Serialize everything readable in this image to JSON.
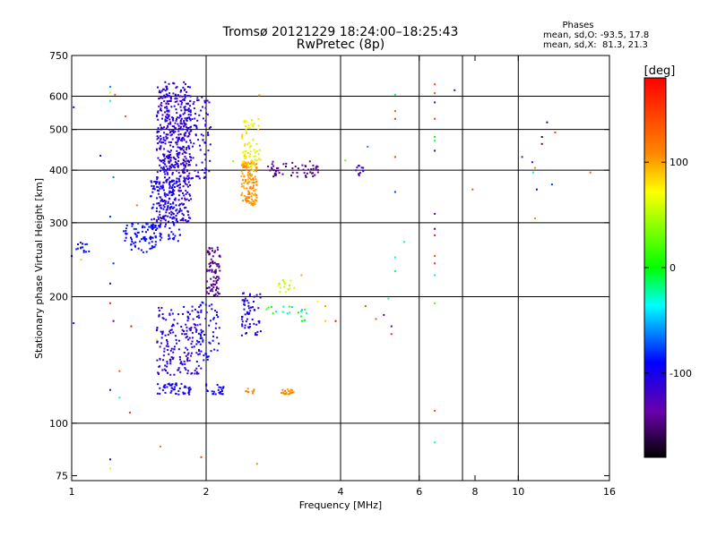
{
  "header": {
    "title_line1": "Tromsø 20121229 18:24:00–18:25:43",
    "title_line2": "RwPretec (8p)",
    "stats_title": "Phases",
    "stats_line1": "mean, sd,O: -93.5, 17.8",
    "stats_line2": "mean, sd,X:  81.3, 21.3"
  },
  "chart_data": {
    "type": "scatter",
    "xlabel": "Frequency [MHz]",
    "ylabel": "Stationary phase Virtual Height [km]",
    "x_scale": "log",
    "y_scale": "log",
    "xlim": [
      1,
      16
    ],
    "ylim": [
      73,
      750
    ],
    "x_ticks": [
      1,
      2,
      4,
      6,
      8,
      10,
      16
    ],
    "y_ticks": [
      75,
      100,
      200,
      300,
      400,
      500,
      600,
      750
    ],
    "x_grid": [
      2,
      4,
      6,
      7.5,
      10
    ],
    "y_grid": [
      100,
      200,
      300,
      400,
      500,
      600
    ],
    "colorbar": {
      "label": "[deg]",
      "range": [
        -180,
        180
      ],
      "ticks": [
        100,
        0,
        -100
      ]
    },
    "clusters": [
      {
        "x": [
          1.55,
          1.85
        ],
        "y": [
          300,
          650
        ],
        "phase": [
          -125,
          -95
        ],
        "n": 520
      },
      {
        "x": [
          1.6,
          2.05
        ],
        "y": [
          380,
          600
        ],
        "phase": [
          -120,
          -100
        ],
        "n": 160
      },
      {
        "x": [
          1.5,
          1.75
        ],
        "y": [
          270,
          380
        ],
        "phase": [
          -105,
          -85
        ],
        "n": 120
      },
      {
        "x": [
          1.3,
          1.55
        ],
        "y": [
          255,
          300
        ],
        "phase": [
          -100,
          -80
        ],
        "n": 80
      },
      {
        "x": [
          1.02,
          1.1
        ],
        "y": [
          255,
          270
        ],
        "phase": [
          -95,
          -80
        ],
        "n": 14
      },
      {
        "x": [
          2.4,
          2.6
        ],
        "y": [
          330,
          420
        ],
        "phase": [
          95,
          115
        ],
        "n": 130
      },
      {
        "x": [
          2.4,
          2.65
        ],
        "y": [
          400,
          530
        ],
        "phase": [
          50,
          90
        ],
        "n": 70
      },
      {
        "x": [
          2.75,
          3.6
        ],
        "y": [
          385,
          420
        ],
        "phase": [
          -160,
          -130
        ],
        "n": 55
      },
      {
        "x": [
          4.3,
          4.5
        ],
        "y": [
          385,
          410
        ],
        "phase": [
          -130,
          -110
        ],
        "n": 12
      },
      {
        "x": [
          2.0,
          2.15
        ],
        "y": [
          200,
          262
        ],
        "phase": [
          -160,
          -130
        ],
        "n": 85
      },
      {
        "x": [
          1.55,
          1.95
        ],
        "y": [
          130,
          190
        ],
        "phase": [
          -120,
          -95
        ],
        "n": 180
      },
      {
        "x": [
          1.9,
          2.15
        ],
        "y": [
          140,
          195
        ],
        "phase": [
          -110,
          -80
        ],
        "n": 60
      },
      {
        "x": [
          1.55,
          1.85
        ],
        "y": [
          117,
          125
        ],
        "phase": [
          -110,
          -90
        ],
        "n": 50
      },
      {
        "x": [
          2.0,
          2.2
        ],
        "y": [
          117,
          124
        ],
        "phase": [
          -105,
          -85
        ],
        "n": 22
      },
      {
        "x": [
          2.4,
          2.65
        ],
        "y": [
          160,
          205
        ],
        "phase": [
          -115,
          -95
        ],
        "n": 60
      },
      {
        "x": [
          2.7,
          3.4
        ],
        "y": [
          175,
          190
        ],
        "phase": [
          -50,
          20
        ],
        "n": 20
      },
      {
        "x": [
          2.95,
          3.15
        ],
        "y": [
          117,
          121
        ],
        "phase": [
          95,
          115
        ],
        "n": 22
      },
      {
        "x": [
          2.45,
          2.6
        ],
        "y": [
          117,
          121
        ],
        "phase": [
          100,
          120
        ],
        "n": 8
      },
      {
        "x": [
          2.9,
          3.1
        ],
        "y": [
          205,
          220
        ],
        "phase": [
          40,
          70
        ],
        "n": 15
      }
    ],
    "points": [
      [
        1.01,
        565,
        -90
      ],
      [
        1.22,
        632,
        -60
      ],
      [
        1.22,
        612,
        60
      ],
      [
        1.25,
        605,
        130
      ],
      [
        1.22,
        585,
        -30
      ],
      [
        1.32,
        537,
        140
      ],
      [
        1.16,
        433,
        -110
      ],
      [
        1.24,
        385,
        -60
      ],
      [
        1.4,
        330,
        120
      ],
      [
        1.22,
        310,
        -80
      ],
      [
        1.0,
        250,
        -110
      ],
      [
        1.05,
        245,
        90
      ],
      [
        1.24,
        240,
        -80
      ],
      [
        1.22,
        215,
        -150
      ],
      [
        1.22,
        193,
        160
      ],
      [
        1.01,
        173,
        -100
      ],
      [
        1.24,
        175,
        -130
      ],
      [
        1.55,
        158,
        80
      ],
      [
        1.36,
        170,
        170
      ],
      [
        1.28,
        133,
        130
      ],
      [
        1.22,
        120,
        -120
      ],
      [
        1.35,
        106,
        150
      ],
      [
        1.28,
        115,
        -20
      ],
      [
        1.58,
        88,
        120
      ],
      [
        1.22,
        82,
        -150
      ],
      [
        1.22,
        78,
        60
      ],
      [
        1.95,
        83,
        150
      ],
      [
        2.6,
        80,
        110
      ],
      [
        2.63,
        603,
        110
      ],
      [
        2.3,
        420,
        40
      ],
      [
        3.27,
        225,
        100
      ],
      [
        3.15,
        210,
        60
      ],
      [
        3.55,
        195,
        70
      ],
      [
        3.7,
        175,
        90
      ],
      [
        3.7,
        190,
        100
      ],
      [
        3.9,
        175,
        180
      ],
      [
        4.1,
        422,
        30
      ],
      [
        4.6,
        455,
        -60
      ],
      [
        5.3,
        605,
        -10
      ],
      [
        5.3,
        553,
        140
      ],
      [
        5.3,
        530,
        150
      ],
      [
        5.3,
        430,
        150
      ],
      [
        5.55,
        270,
        -20
      ],
      [
        5.3,
        355,
        -80
      ],
      [
        5.3,
        248,
        -40
      ],
      [
        5.3,
        230,
        -20
      ],
      [
        5.12,
        198,
        -20
      ],
      [
        5.0,
        181,
        -120
      ],
      [
        4.8,
        177,
        140
      ],
      [
        4.55,
        190,
        140
      ],
      [
        5.2,
        170,
        -140
      ],
      [
        5.2,
        163,
        150
      ],
      [
        6.5,
        640,
        150
      ],
      [
        6.5,
        610,
        140
      ],
      [
        6.5,
        580,
        -120
      ],
      [
        6.5,
        530,
        150
      ],
      [
        6.5,
        480,
        0
      ],
      [
        6.5,
        470,
        -10
      ],
      [
        6.5,
        445,
        -150
      ],
      [
        6.5,
        315,
        -140
      ],
      [
        6.5,
        290,
        -150
      ],
      [
        6.5,
        280,
        170
      ],
      [
        6.5,
        250,
        140
      ],
      [
        6.5,
        240,
        160
      ],
      [
        6.5,
        225,
        -40
      ],
      [
        6.5,
        193,
        20
      ],
      [
        6.5,
        107,
        140
      ],
      [
        6.5,
        90,
        -30
      ],
      [
        7.2,
        620,
        -120
      ],
      [
        7.9,
        360,
        140
      ],
      [
        10.75,
        418,
        -130
      ],
      [
        11.3,
        480,
        -160
      ],
      [
        11.3,
        462,
        -150
      ],
      [
        10.9,
        405,
        110
      ],
      [
        10.8,
        395,
        -40
      ],
      [
        11.0,
        360,
        -100
      ],
      [
        10.9,
        307,
        110
      ],
      [
        10.2,
        430,
        -80
      ],
      [
        12.1,
        492,
        150
      ],
      [
        11.9,
        370,
        -80
      ],
      [
        14.5,
        395,
        130
      ],
      [
        11.6,
        520,
        -160
      ]
    ]
  }
}
